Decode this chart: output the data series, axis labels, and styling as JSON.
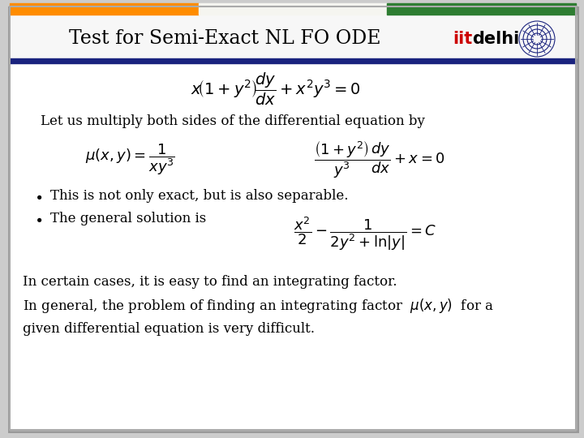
{
  "title": "Test for Semi-Exact NL FO ODE",
  "bg_color": "#ffffff",
  "border_top_orange": "#FF8C00",
  "border_top_green": "#2e7d32",
  "blue_line_color": "#1a237e",
  "iitd_color_iit": "#cc0000",
  "eq1": "x\\!\\left(1+y^2\\right)\\!\\dfrac{dy}{dx}+x^2y^3=0",
  "text1": "Let us multiply both sides of the differential equation by",
  "eq_mu": "\\mu(x,y)=\\dfrac{1}{xy^3}",
  "eq2": "\\dfrac{\\left(1+y^2\\right)}{y^3}\\dfrac{dy}{dx}+x=0",
  "bullet1": "This is not only exact, but is also separable.",
  "bullet2": "The general solution is",
  "eq3": "\\dfrac{x^2}{2}-\\dfrac{1}{2y^2+\\ln|y|}=C",
  "text_bottom1": "In certain cases, it is easy to find an integrating factor.",
  "text_bottom2": "In general, the problem of finding an integrating factor  $\\mu(x, y)$  for a",
  "text_bottom3": "given differential equation is very difficult."
}
